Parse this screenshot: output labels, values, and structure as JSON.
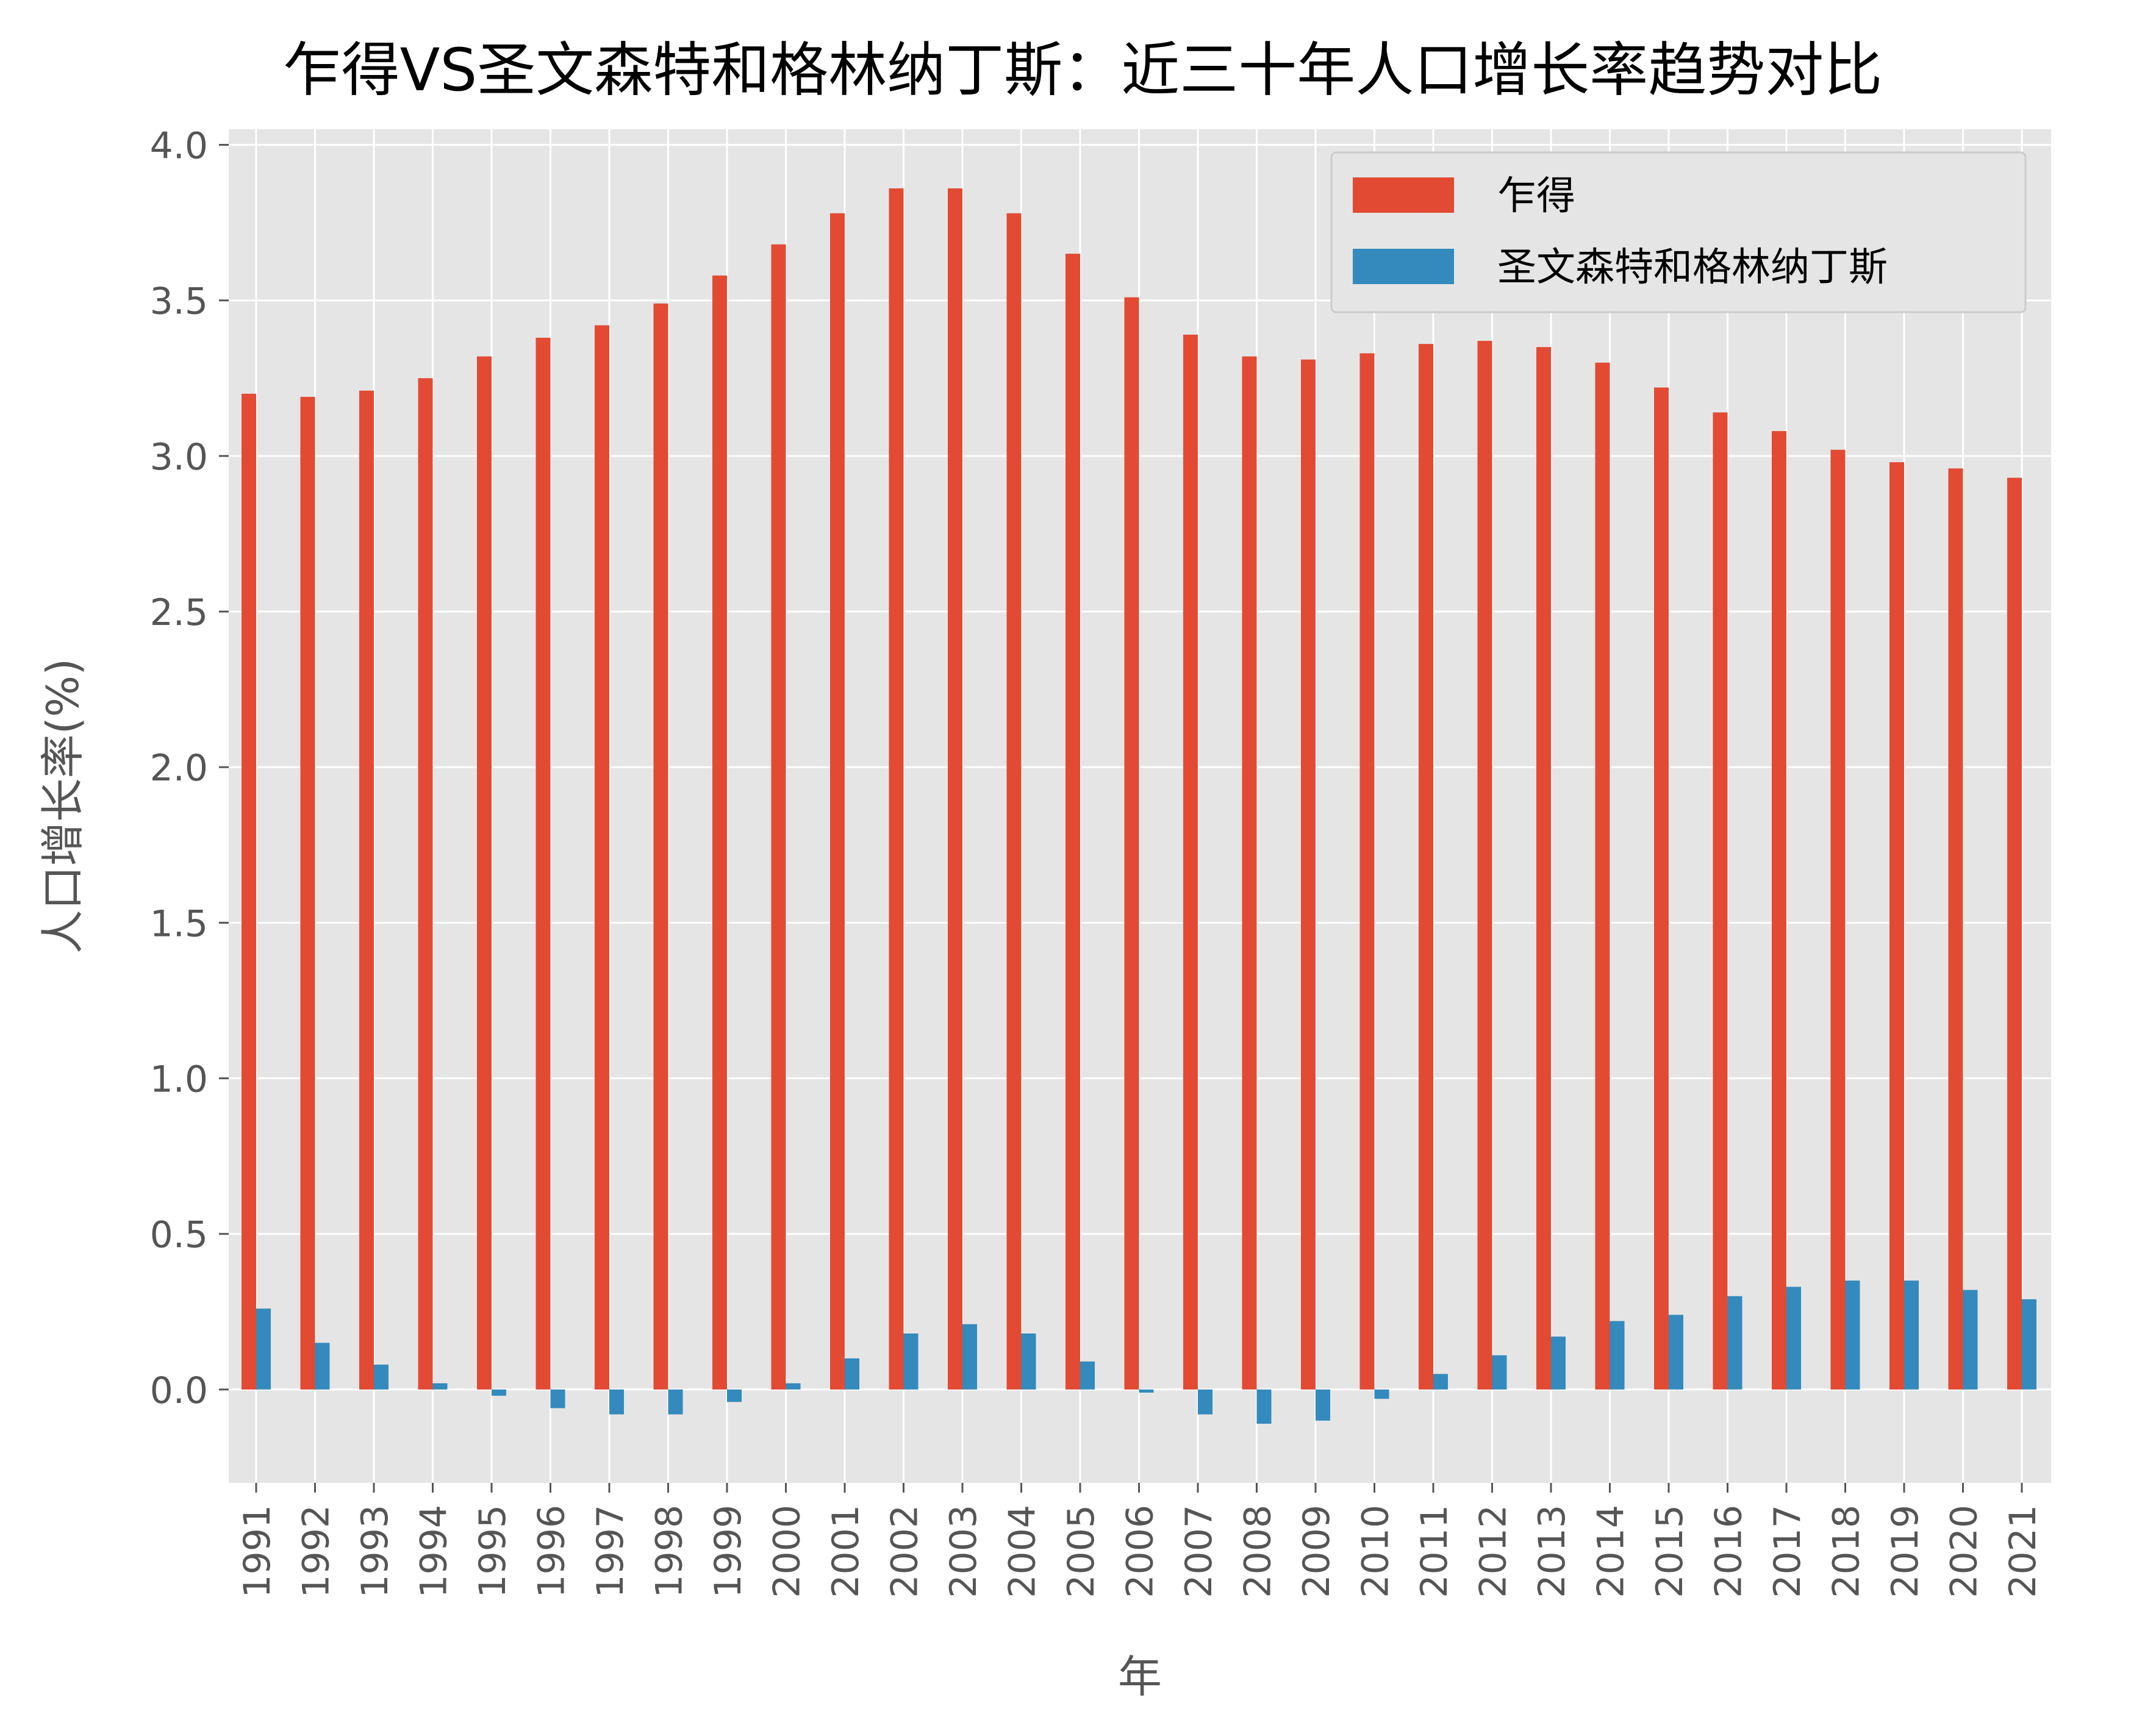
{
  "colors": {
    "plot_background": "#E5E5E5",
    "grid": "#FFFFFF",
    "series_0": "#E24A33",
    "series_1": "#348ABD",
    "text": "#555555",
    "title": "#000000"
  },
  "chart_data": {
    "type": "bar",
    "title": "乍得VS圣文森特和格林纳丁斯：近三十年人口增长率趋势对比",
    "xlabel": "年",
    "ylabel": "人口增长率(%)",
    "ylim": [
      -0.3,
      4.05
    ],
    "yticks": [
      "0.0",
      "0.5",
      "1.0",
      "1.5",
      "2.0",
      "2.5",
      "3.0",
      "3.5",
      "4.0"
    ],
    "grid": true,
    "legend_position": "top-right",
    "categories": [
      "1991",
      "1992",
      "1993",
      "1994",
      "1995",
      "1996",
      "1997",
      "1998",
      "1999",
      "2000",
      "2001",
      "2002",
      "2003",
      "2004",
      "2005",
      "2006",
      "2007",
      "2008",
      "2009",
      "2010",
      "2011",
      "2012",
      "2013",
      "2014",
      "2015",
      "2016",
      "2017",
      "2018",
      "2019",
      "2020",
      "2021"
    ],
    "series": [
      {
        "name": "乍得",
        "values": [
          3.2,
          3.19,
          3.21,
          3.25,
          3.32,
          3.38,
          3.42,
          3.49,
          3.58,
          3.68,
          3.78,
          3.86,
          3.86,
          3.78,
          3.65,
          3.51,
          3.39,
          3.32,
          3.31,
          3.33,
          3.36,
          3.37,
          3.35,
          3.3,
          3.22,
          3.14,
          3.08,
          3.02,
          2.98,
          2.96,
          2.93
        ]
      },
      {
        "name": "圣文森特和格林纳丁斯",
        "values": [
          0.26,
          0.15,
          0.08,
          0.02,
          -0.02,
          -0.06,
          -0.08,
          -0.08,
          -0.04,
          0.02,
          0.1,
          0.18,
          0.21,
          0.18,
          0.09,
          -0.01,
          -0.08,
          -0.11,
          -0.1,
          -0.03,
          0.05,
          0.11,
          0.17,
          0.22,
          0.24,
          0.3,
          0.33,
          0.35,
          0.35,
          0.32,
          0.29
        ]
      }
    ]
  }
}
